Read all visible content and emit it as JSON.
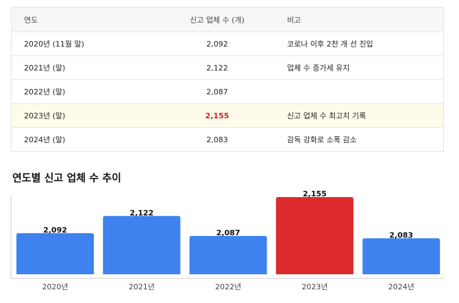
{
  "table": {
    "headers": [
      "연도",
      "신고 업체 수 (개)",
      "비고"
    ],
    "rows": [
      {
        "year": "2020년 (11월 말)",
        "count": "2,092",
        "note": "코로나 이후 2천 개 선 진입"
      },
      {
        "year": "2021년 (말)",
        "count": "2,122",
        "note": "업체 수 증가세 유지"
      },
      {
        "year": "2022년 (말)",
        "count": "2,087",
        "note": ""
      },
      {
        "year": "2023년 (말)",
        "count": "2,155",
        "note": "신고 업체 수 최고치 기록"
      },
      {
        "year": "2024년 (말)",
        "count": "2,083",
        "note": "감독 강화로 소폭 감소"
      }
    ]
  },
  "chart_title": "연도별 신고 업체 수 추이",
  "colors": {
    "bar": "#3d82ee",
    "highlight": "#dd2a2a",
    "axis": "#cccccc"
  },
  "chart_data": {
    "type": "bar",
    "title": "연도별 신고 업체 수 추이",
    "categories": [
      "2020년",
      "2021년",
      "2022년",
      "2023년",
      "2024년"
    ],
    "values": [
      2092,
      2122,
      2087,
      2155,
      2083
    ],
    "value_labels": [
      "2,092",
      "2,122",
      "2,087",
      "2,155",
      "2,083"
    ],
    "highlight_index": 3,
    "ylim": [
      2020,
      2160
    ],
    "grid": false,
    "legend": "none"
  }
}
